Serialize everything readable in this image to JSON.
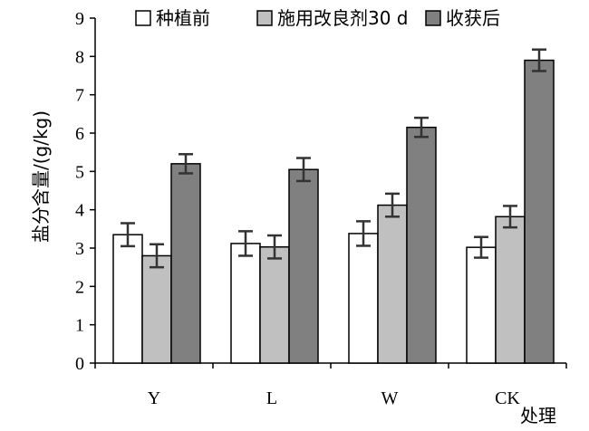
{
  "chart_data": {
    "type": "bar",
    "categories": [
      "Y",
      "L",
      "W",
      "CK"
    ],
    "series": [
      {
        "name": "种植前",
        "values": [
          3.35,
          3.12,
          3.38,
          3.02
        ],
        "errors": [
          0.3,
          0.32,
          0.32,
          0.27
        ],
        "color": "#ffffff"
      },
      {
        "name": "施用改良剂30 d",
        "values": [
          2.8,
          3.03,
          4.12,
          3.82
        ],
        "errors": [
          0.3,
          0.3,
          0.3,
          0.28
        ],
        "color": "#c0c0c0"
      },
      {
        "name": "收获后",
        "values": [
          5.2,
          5.05,
          6.15,
          7.9
        ],
        "errors": [
          0.25,
          0.3,
          0.25,
          0.28
        ],
        "color": "#808080"
      }
    ],
    "title": "",
    "xlabel": "处理",
    "ylabel": "盐分含量/(g/kg)",
    "ylim": [
      0,
      9
    ],
    "yticks": [
      0,
      1,
      2,
      3,
      4,
      5,
      6,
      7,
      8,
      9
    ],
    "grid": false,
    "legend": "top"
  }
}
